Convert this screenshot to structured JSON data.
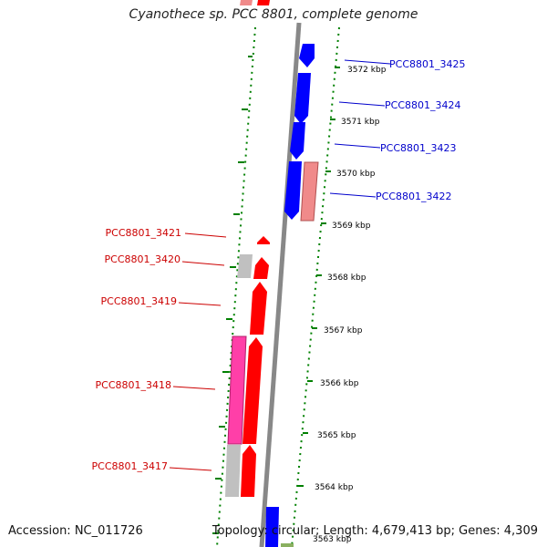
{
  "title": "Cyanothece sp. PCC 8801, complete genome",
  "accession": "Accession: NC_011726",
  "summary": "Topology: circular; Length: 4,679,413 bp; Genes: 4,309",
  "colors": {
    "forward": "#ff0000",
    "reverse": "#0000ff",
    "pink": "#ff3fa8",
    "salmon": "#f08a8a",
    "gray": "#c0c0c0",
    "backbone": "#888888",
    "ruler": "#008000",
    "label_forward": "#cc0000",
    "label_reverse": "#0000cc"
  },
  "tick_labels": [
    "3572 kbp",
    "3571 kbp",
    "3570 kbp",
    "3569 kbp",
    "3568 kbp",
    "3567 kbp",
    "3566 kbp",
    "3565 kbp",
    "3564 kbp",
    "3563 kbp"
  ],
  "gene_labels_right": [
    "PCC8801_3425",
    "PCC8801_3424",
    "PCC8801_3423",
    "PCC8801_3422"
  ],
  "gene_labels_left": [
    "PCC8801_3421",
    "PCC8801_3420",
    "PCC8801_3419",
    "PCC8801_3418",
    "PCC8801_3417"
  ]
}
